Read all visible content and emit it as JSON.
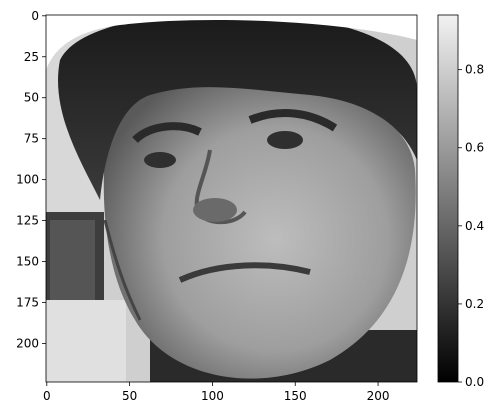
{
  "chart_data": {
    "type": "heatmap",
    "image": {
      "subject_icon": "grayscale-face-photo",
      "colormap": "gray",
      "rows": 224,
      "cols": 224
    },
    "x_axis": {
      "ticks": [
        0,
        50,
        100,
        150,
        200
      ],
      "tick_labels": [
        "0",
        "50",
        "100",
        "150",
        "200"
      ],
      "range": [
        0,
        224
      ]
    },
    "y_axis": {
      "ticks": [
        0,
        25,
        50,
        75,
        100,
        125,
        150,
        175,
        200
      ],
      "tick_labels": [
        "0",
        "25",
        "50",
        "75",
        "100",
        "125",
        "150",
        "175",
        "200"
      ],
      "range": [
        0,
        224
      ]
    },
    "colorbar": {
      "range": [
        0.0,
        0.94
      ],
      "ticks": [
        0.0,
        0.2,
        0.4,
        0.6,
        0.8
      ],
      "tick_labels": [
        "0.0",
        "0.2",
        "0.4",
        "0.6",
        "0.8"
      ],
      "low_color": "#000000",
      "high_color": "#f2f2f2"
    }
  }
}
